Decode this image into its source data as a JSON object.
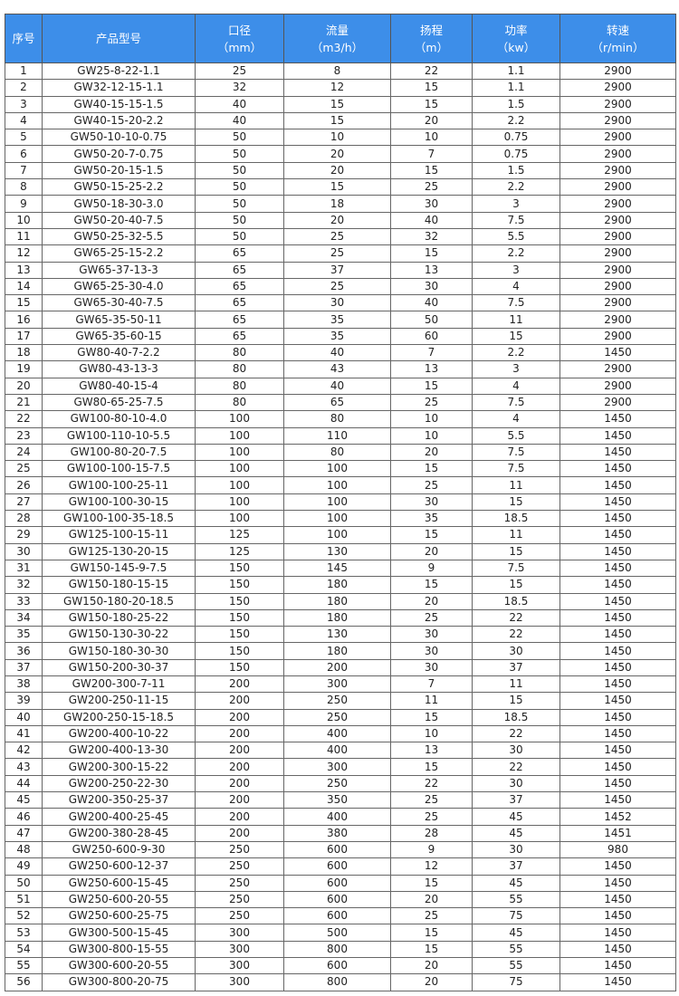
{
  "header_color": "#3d8ee9",
  "headers": [
    [
      "序号",
      ""
    ],
    [
      "产品型号",
      ""
    ],
    [
      "口径",
      "（mm）"
    ],
    [
      "流量",
      "（m3/h）"
    ],
    [
      "扬程",
      "（m）"
    ],
    [
      "功率",
      "（kw）"
    ],
    [
      "转速",
      "（r/min）"
    ]
  ],
  "rows": [
    [
      "1",
      "GW25-8-22-1.1",
      "25",
      "8",
      "22",
      "1.1",
      "2900"
    ],
    [
      "2",
      "GW32-12-15-1.1",
      "32",
      "12",
      "15",
      "1.1",
      "2900"
    ],
    [
      "3",
      "GW40-15-15-1.5",
      "40",
      "15",
      "15",
      "1.5",
      "2900"
    ],
    [
      "4",
      "GW40-15-20-2.2",
      "40",
      "15",
      "20",
      "2.2",
      "2900"
    ],
    [
      "5",
      "GW50-10-10-0.75",
      "50",
      "10",
      "10",
      "0.75",
      "2900"
    ],
    [
      "6",
      "GW50-20-7-0.75",
      "50",
      "20",
      "7",
      "0.75",
      "2900"
    ],
    [
      "7",
      "GW50-20-15-1.5",
      "50",
      "20",
      "15",
      "1.5",
      "2900"
    ],
    [
      "8",
      "GW50-15-25-2.2",
      "50",
      "15",
      "25",
      "2.2",
      "2900"
    ],
    [
      "9",
      "GW50-18-30-3.0",
      "50",
      "18",
      "30",
      "3",
      "2900"
    ],
    [
      "10",
      "GW50-20-40-7.5",
      "50",
      "20",
      "40",
      "7.5",
      "2900"
    ],
    [
      "11",
      "GW50-25-32-5.5",
      "50",
      "25",
      "32",
      "5.5",
      "2900"
    ],
    [
      "12",
      "GW65-25-15-2.2",
      "65",
      "25",
      "15",
      "2.2",
      "2900"
    ],
    [
      "13",
      "GW65-37-13-3",
      "65",
      "37",
      "13",
      "3",
      "2900"
    ],
    [
      "14",
      "GW65-25-30-4.0",
      "65",
      "25",
      "30",
      "4",
      "2900"
    ],
    [
      "15",
      "GW65-30-40-7.5",
      "65",
      "30",
      "40",
      "7.5",
      "2900"
    ],
    [
      "16",
      "GW65-35-50-11",
      "65",
      "35",
      "50",
      "11",
      "2900"
    ],
    [
      "17",
      "GW65-35-60-15",
      "65",
      "35",
      "60",
      "15",
      "2900"
    ],
    [
      "18",
      "GW80-40-7-2.2",
      "80",
      "40",
      "7",
      "2.2",
      "1450"
    ],
    [
      "19",
      "GW80-43-13-3",
      "80",
      "43",
      "13",
      "3",
      "2900"
    ],
    [
      "20",
      "GW80-40-15-4",
      "80",
      "40",
      "15",
      "4",
      "2900"
    ],
    [
      "21",
      "GW80-65-25-7.5",
      "80",
      "65",
      "25",
      "7.5",
      "2900"
    ],
    [
      "22",
      "GW100-80-10-4.0",
      "100",
      "80",
      "10",
      "4",
      "1450"
    ],
    [
      "23",
      "GW100-110-10-5.5",
      "100",
      "110",
      "10",
      "5.5",
      "1450"
    ],
    [
      "24",
      "GW100-80-20-7.5",
      "100",
      "80",
      "20",
      "7.5",
      "1450"
    ],
    [
      "25",
      "GW100-100-15-7.5",
      "100",
      "100",
      "15",
      "7.5",
      "1450"
    ],
    [
      "26",
      "GW100-100-25-11",
      "100",
      "100",
      "25",
      "11",
      "1450"
    ],
    [
      "27",
      "GW100-100-30-15",
      "100",
      "100",
      "30",
      "15",
      "1450"
    ],
    [
      "28",
      "GW100-100-35-18.5",
      "100",
      "100",
      "35",
      "18.5",
      "1450"
    ],
    [
      "29",
      "GW125-100-15-11",
      "125",
      "100",
      "15",
      "11",
      "1450"
    ],
    [
      "30",
      "GW125-130-20-15",
      "125",
      "130",
      "20",
      "15",
      "1450"
    ],
    [
      "31",
      "GW150-145-9-7.5",
      "150",
      "145",
      "9",
      "7.5",
      "1450"
    ],
    [
      "32",
      "GW150-180-15-15",
      "150",
      "180",
      "15",
      "15",
      "1450"
    ],
    [
      "33",
      "GW150-180-20-18.5",
      "150",
      "180",
      "20",
      "18.5",
      "1450"
    ],
    [
      "34",
      "GW150-180-25-22",
      "150",
      "180",
      "25",
      "22",
      "1450"
    ],
    [
      "35",
      "GW150-130-30-22",
      "150",
      "130",
      "30",
      "22",
      "1450"
    ],
    [
      "36",
      "GW150-180-30-30",
      "150",
      "180",
      "30",
      "30",
      "1450"
    ],
    [
      "37",
      "GW150-200-30-37",
      "150",
      "200",
      "30",
      "37",
      "1450"
    ],
    [
      "38",
      "GW200-300-7-11",
      "200",
      "300",
      "7",
      "11",
      "1450"
    ],
    [
      "39",
      "GW200-250-11-15",
      "200",
      "250",
      "11",
      "15",
      "1450"
    ],
    [
      "40",
      "GW200-250-15-18.5",
      "200",
      "250",
      "15",
      "18.5",
      "1450"
    ],
    [
      "41",
      "GW200-400-10-22",
      "200",
      "400",
      "10",
      "22",
      "1450"
    ],
    [
      "42",
      "GW200-400-13-30",
      "200",
      "400",
      "13",
      "30",
      "1450"
    ],
    [
      "43",
      "GW200-300-15-22",
      "200",
      "300",
      "15",
      "22",
      "1450"
    ],
    [
      "44",
      "GW200-250-22-30",
      "200",
      "250",
      "22",
      "30",
      "1450"
    ],
    [
      "45",
      "GW200-350-25-37",
      "200",
      "350",
      "25",
      "37",
      "1450"
    ],
    [
      "46",
      "GW200-400-25-45",
      "200",
      "400",
      "25",
      "45",
      "1452"
    ],
    [
      "47",
      "GW200-380-28-45",
      "200",
      "380",
      "28",
      "45",
      "1451"
    ],
    [
      "48",
      "GW250-600-9-30",
      "250",
      "600",
      "9",
      "30",
      "980"
    ],
    [
      "49",
      "GW250-600-12-37",
      "250",
      "600",
      "12",
      "37",
      "1450"
    ],
    [
      "50",
      "GW250-600-15-45",
      "250",
      "600",
      "15",
      "45",
      "1450"
    ],
    [
      "51",
      "GW250-600-20-55",
      "250",
      "600",
      "20",
      "55",
      "1450"
    ],
    [
      "52",
      "GW250-600-25-75",
      "250",
      "600",
      "25",
      "75",
      "1450"
    ],
    [
      "53",
      "GW300-500-15-45",
      "300",
      "500",
      "15",
      "45",
      "1450"
    ],
    [
      "54",
      "GW300-800-15-55",
      "300",
      "800",
      "15",
      "55",
      "1450"
    ],
    [
      "55",
      "GW300-600-20-55",
      "300",
      "600",
      "20",
      "55",
      "1450"
    ],
    [
      "56",
      "GW300-800-20-75",
      "300",
      "800",
      "20",
      "75",
      "1450"
    ]
  ]
}
